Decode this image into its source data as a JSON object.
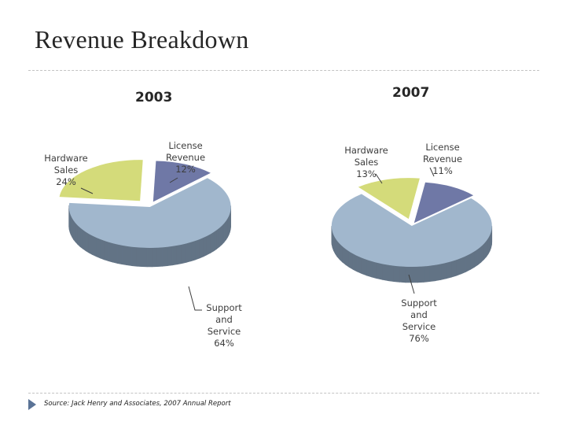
{
  "page": {
    "title": "Revenue Breakdown",
    "source": "Source: Jack Henry and Associates, 2007 Annual Report"
  },
  "chart_data": [
    {
      "type": "pie",
      "title": "2003",
      "slices": [
        {
          "label": "License Revenue",
          "label_lines": [
            "License",
            "Revenue"
          ],
          "value": 12,
          "value_label": "12%",
          "color": "#6f78a6",
          "side": "#4a5078"
        },
        {
          "label": "Support and Service",
          "label_lines": [
            "Support",
            "and",
            "Service"
          ],
          "value": 64,
          "value_label": "64%",
          "color": "#a1b7cd",
          "side": "#627385"
        },
        {
          "label": "Hardware Sales",
          "label_lines": [
            "Hardware",
            "Sales"
          ],
          "value": 24,
          "value_label": "24%",
          "color": "#d4db7a",
          "side": "#5c6030"
        }
      ]
    },
    {
      "type": "pie",
      "title": "2007",
      "slices": [
        {
          "label": "License Revenue",
          "label_lines": [
            "License",
            "Revenue"
          ],
          "value": 11,
          "value_label": "11%",
          "color": "#6f78a6",
          "side": "#4a5078"
        },
        {
          "label": "Support and Service",
          "label_lines": [
            "Support",
            "and",
            "Service"
          ],
          "value": 76,
          "value_label": "76%",
          "color": "#a1b7cd",
          "side": "#627385"
        },
        {
          "label": "Hardware Sales",
          "label_lines": [
            "Hardware",
            "Sales"
          ],
          "value": 13,
          "value_label": "13%",
          "color": "#d4db7a",
          "side": "#5c6030"
        }
      ]
    }
  ]
}
